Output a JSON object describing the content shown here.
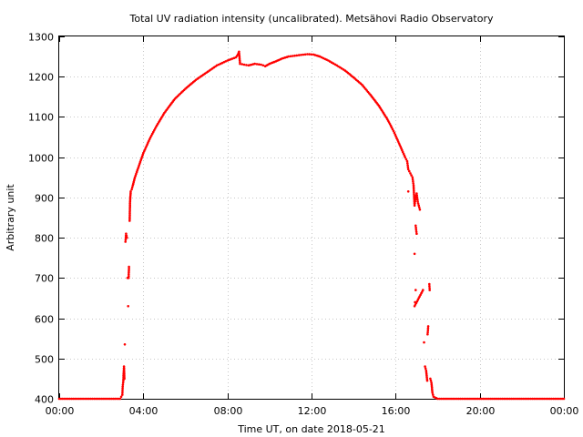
{
  "chart_data": {
    "type": "scatter",
    "title": "Total UV radiation intensity (uncalibrated). Metsähovi Radio Observatory",
    "xlabel": "Time UT, on date 2018-05-21",
    "ylabel": "Arbitrary unit",
    "xlim": [
      0,
      24
    ],
    "ylim": [
      400,
      1300
    ],
    "x_unit": "hours UT",
    "x_ticks": [
      0,
      4,
      8,
      12,
      16,
      20,
      24
    ],
    "x_tick_labels": [
      "00:00",
      "04:00",
      "08:00",
      "12:00",
      "16:00",
      "20:00",
      "00:00"
    ],
    "y_ticks": [
      400,
      500,
      600,
      700,
      800,
      900,
      1000,
      1100,
      1200,
      1300
    ],
    "y_tick_labels": [
      "400",
      "500",
      "600",
      "700",
      "800",
      "900",
      "1000",
      "1100",
      "1200",
      "1300"
    ],
    "grid": true,
    "legend": "none",
    "series": [
      {
        "color": "#ff0000",
        "marker": "small-dot",
        "points": [
          [
            0.0,
            400
          ],
          [
            0.5,
            400
          ],
          [
            1.0,
            400
          ],
          [
            1.5,
            400
          ],
          [
            2.0,
            400
          ],
          [
            2.5,
            400
          ],
          [
            2.9,
            400
          ],
          [
            3.0,
            410
          ],
          [
            3.02,
            430
          ],
          [
            3.05,
            445
          ],
          [
            3.07,
            470
          ],
          [
            3.08,
            480
          ],
          [
            3.1,
            450
          ],
          [
            3.12,
            535
          ],
          [
            3.15,
            790
          ],
          [
            3.18,
            810
          ],
          [
            3.2,
            805
          ],
          [
            3.22,
            800
          ],
          [
            3.25,
            700
          ],
          [
            3.28,
            630
          ],
          [
            3.3,
            700
          ],
          [
            3.32,
            728
          ],
          [
            3.35,
            842
          ],
          [
            3.37,
            890
          ],
          [
            3.4,
            915
          ],
          [
            3.45,
            920
          ],
          [
            3.5,
            930
          ],
          [
            3.6,
            950
          ],
          [
            3.8,
            980
          ],
          [
            4.0,
            1010
          ],
          [
            4.3,
            1045
          ],
          [
            4.6,
            1075
          ],
          [
            5.0,
            1110
          ],
          [
            5.5,
            1145
          ],
          [
            6.0,
            1170
          ],
          [
            6.5,
            1192
          ],
          [
            7.0,
            1210
          ],
          [
            7.5,
            1228
          ],
          [
            8.0,
            1240
          ],
          [
            8.4,
            1248
          ],
          [
            8.5,
            1255
          ],
          [
            8.55,
            1262
          ],
          [
            8.6,
            1232
          ],
          [
            8.8,
            1230
          ],
          [
            9.0,
            1228
          ],
          [
            9.3,
            1232
          ],
          [
            9.6,
            1230
          ],
          [
            9.8,
            1226
          ],
          [
            10.0,
            1232
          ],
          [
            10.3,
            1238
          ],
          [
            10.6,
            1245
          ],
          [
            10.9,
            1250
          ],
          [
            11.2,
            1252
          ],
          [
            11.5,
            1254
          ],
          [
            11.8,
            1256
          ],
          [
            12.1,
            1255
          ],
          [
            12.4,
            1250
          ],
          [
            12.8,
            1240
          ],
          [
            13.2,
            1228
          ],
          [
            13.6,
            1215
          ],
          [
            14.0,
            1198
          ],
          [
            14.4,
            1180
          ],
          [
            14.8,
            1155
          ],
          [
            15.2,
            1128
          ],
          [
            15.6,
            1095
          ],
          [
            15.9,
            1065
          ],
          [
            16.2,
            1030
          ],
          [
            16.45,
            1000
          ],
          [
            16.55,
            990
          ],
          [
            16.6,
            970
          ],
          [
            16.7,
            960
          ],
          [
            16.8,
            950
          ],
          [
            16.85,
            930
          ],
          [
            16.9,
            880
          ],
          [
            16.95,
            900
          ],
          [
            17.0,
            910
          ],
          [
            17.05,
            890
          ],
          [
            17.1,
            880
          ],
          [
            17.15,
            870
          ],
          [
            16.6,
            915
          ],
          [
            16.9,
            760
          ],
          [
            16.95,
            830
          ],
          [
            17.0,
            810
          ],
          [
            16.95,
            670
          ],
          [
            16.92,
            640
          ],
          [
            16.9,
            630
          ],
          [
            17.3,
            670
          ],
          [
            17.35,
            540
          ],
          [
            17.4,
            480
          ],
          [
            17.45,
            470
          ],
          [
            17.5,
            445
          ],
          [
            17.52,
            560
          ],
          [
            17.55,
            580
          ],
          [
            17.6,
            685
          ],
          [
            17.62,
            670
          ],
          [
            17.65,
            450
          ],
          [
            17.7,
            440
          ],
          [
            17.75,
            415
          ],
          [
            17.8,
            405
          ],
          [
            18.0,
            400
          ],
          [
            18.5,
            400
          ],
          [
            19.0,
            400
          ],
          [
            19.5,
            400
          ],
          [
            20.0,
            400
          ],
          [
            20.5,
            400
          ],
          [
            21.0,
            400
          ],
          [
            21.5,
            400
          ],
          [
            22.0,
            400
          ],
          [
            22.5,
            400
          ],
          [
            23.0,
            400
          ],
          [
            23.5,
            400
          ],
          [
            24.0,
            400
          ]
        ]
      }
    ]
  }
}
